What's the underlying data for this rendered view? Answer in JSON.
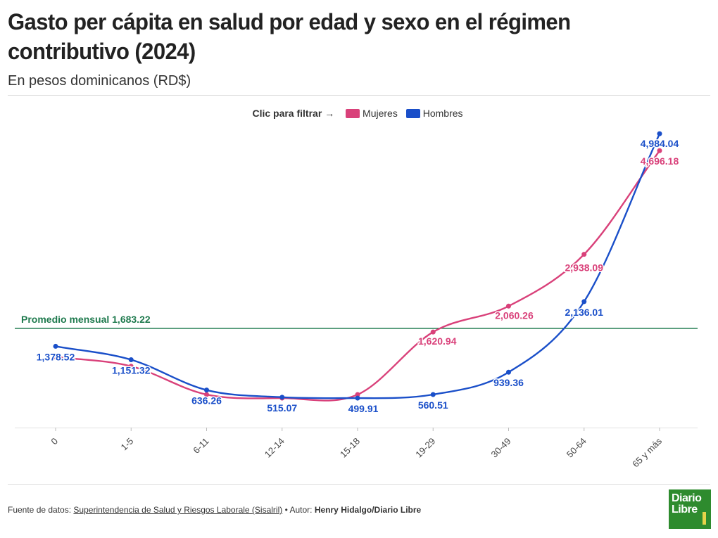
{
  "title": "Gasto per cápita en salud por edad y sexo en el régimen contributivo (2024)",
  "subtitle": "En pesos dominicanos (RD$)",
  "legend": {
    "hint": "Clic para filtrar →",
    "items": [
      "Mujeres",
      "Hombres"
    ]
  },
  "footer": {
    "source_prefix": "Fuente de datos:",
    "source_link": "Superintendencia de Salud y Riesgos Laborale (Sisalril)",
    "author_prefix": "• Autor:",
    "author": "Henry Hidalgo/Diario Libre"
  },
  "logo": {
    "line1": "Diario",
    "line2": "Libre"
  },
  "chart_data": {
    "type": "line",
    "categories": [
      "0",
      "1-5",
      "6-11",
      "12-14",
      "15-18",
      "19-29",
      "30-49",
      "50-64",
      "65 y más"
    ],
    "series": [
      {
        "name": "Mujeres",
        "color": "#d9417a",
        "values": [
          1200,
          1040,
          560,
          500,
          560,
          1620.94,
          2060.26,
          2938.09,
          4696.18
        ],
        "labels": [
          "",
          "",
          "",
          "",
          "",
          "1,620.94",
          "2,060.26",
          "2,938.09",
          "4,696.18"
        ]
      },
      {
        "name": "Hombres",
        "color": "#1a4fc9",
        "values": [
          1378.52,
          1151.32,
          636.26,
          515.07,
          499.91,
          560.51,
          939.36,
          2136.01,
          4984.04
        ],
        "labels": [
          "1,378.52",
          "1,151.32",
          "636.26",
          "515.07",
          "499.91",
          "560.51",
          "939.36",
          "2,136.01",
          "4,984.04"
        ]
      }
    ],
    "reference_line": {
      "value": 1683.22,
      "label": "Promedio mensual 1,683.22",
      "color": "#1f7a4e"
    },
    "ylim": [
      0,
      5200
    ],
    "grid": false,
    "legend_position": "top-center"
  }
}
